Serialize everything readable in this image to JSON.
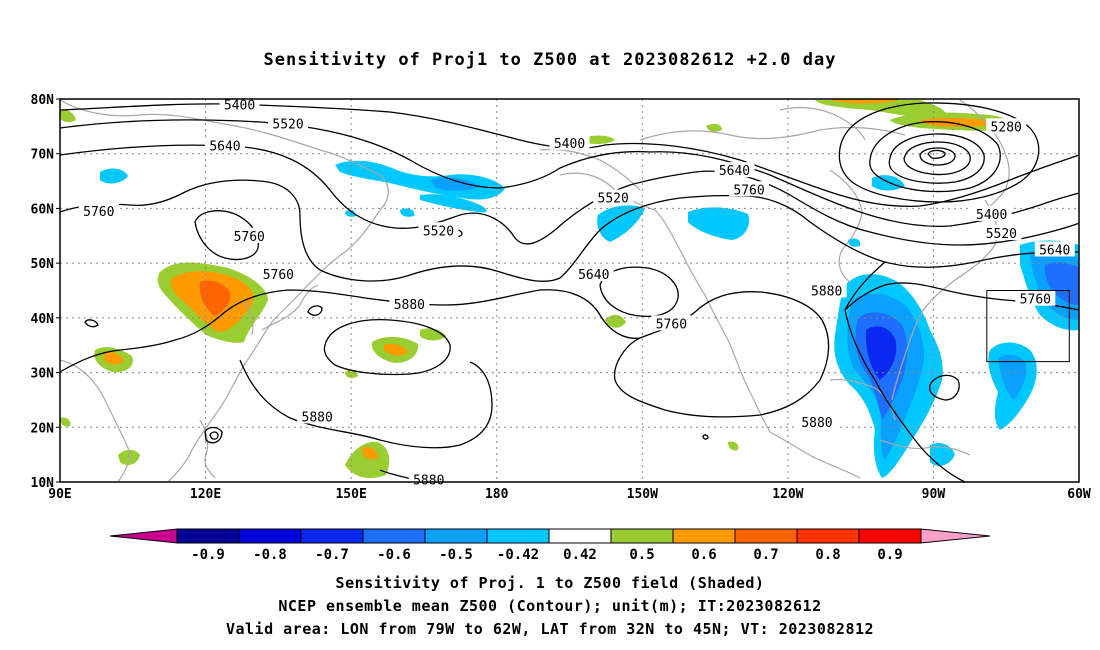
{
  "title": "Sensitivity of Proj1 to Z500 at 2023082612 +2.0 day",
  "map": {
    "lon_range": [
      90,
      300
    ],
    "lat_range": [
      10,
      80
    ],
    "lat_ticks": [
      {
        "value": 80,
        "label": "80N"
      },
      {
        "value": 70,
        "label": "70N"
      },
      {
        "value": 60,
        "label": "60N"
      },
      {
        "value": 50,
        "label": "50N"
      },
      {
        "value": 40,
        "label": "40N"
      },
      {
        "value": 30,
        "label": "30N"
      },
      {
        "value": 20,
        "label": "20N"
      },
      {
        "value": 10,
        "label": "10N"
      }
    ],
    "lon_ticks": [
      {
        "value": 90,
        "label": "90E"
      },
      {
        "value": 120,
        "label": "120E"
      },
      {
        "value": 150,
        "label": "150E"
      },
      {
        "value": 180,
        "label": "180"
      },
      {
        "value": 210,
        "label": "150W"
      },
      {
        "value": 240,
        "label": "120W"
      },
      {
        "value": 270,
        "label": "90W"
      },
      {
        "value": 300,
        "label": "60W"
      }
    ],
    "grid": "dotted",
    "contour_labels": [
      {
        "text": "5400",
        "lon": 127,
        "lat": 79
      },
      {
        "text": "5520",
        "lon": 137,
        "lat": 75.5
      },
      {
        "text": "5640",
        "lon": 124,
        "lat": 71.5
      },
      {
        "text": "5400",
        "lon": 195,
        "lat": 72
      },
      {
        "text": "5280",
        "lon": 285,
        "lat": 75
      },
      {
        "text": "5640",
        "lon": 229,
        "lat": 67
      },
      {
        "text": "5760",
        "lon": 232,
        "lat": 63.5
      },
      {
        "text": "5520",
        "lon": 204,
        "lat": 62
      },
      {
        "text": "5760",
        "lon": 98,
        "lat": 59.5
      },
      {
        "text": "5400",
        "lon": 282,
        "lat": 59
      },
      {
        "text": "5760",
        "lon": 129,
        "lat": 55
      },
      {
        "text": "5520",
        "lon": 168,
        "lat": 56
      },
      {
        "text": "5520",
        "lon": 284,
        "lat": 55.5
      },
      {
        "text": "5640",
        "lon": 295,
        "lat": 52.5
      },
      {
        "text": "5760",
        "lon": 135,
        "lat": 48
      },
      {
        "text": "5640",
        "lon": 200,
        "lat": 48
      },
      {
        "text": "5880",
        "lon": 248,
        "lat": 45
      },
      {
        "text": "5760",
        "lon": 291,
        "lat": 43.5
      },
      {
        "text": "5880",
        "lon": 162,
        "lat": 42.5
      },
      {
        "text": "5760",
        "lon": 216,
        "lat": 39
      },
      {
        "text": "5880",
        "lon": 143,
        "lat": 22
      },
      {
        "text": "5880",
        "lon": 246,
        "lat": 21
      },
      {
        "text": "5880",
        "lon": 166,
        "lat": 10.5
      }
    ],
    "valid_box": {
      "lon_from": 281,
      "lon_to": 298,
      "lat_from": 32,
      "lat_to": 45
    }
  },
  "colorbar": {
    "labels": [
      "-0.9",
      "-0.8",
      "-0.7",
      "-0.6",
      "-0.5",
      "-0.42",
      "0.42",
      "0.5",
      "0.6",
      "0.7",
      "0.8",
      "0.9"
    ],
    "colors": [
      "#000096",
      "#0000dc",
      "#0a28f0",
      "#1e6eff",
      "#0aa0ff",
      "#00c8ff",
      "#ffffff",
      "#9acd32",
      "#ff9a00",
      "#ff6400",
      "#ff3200",
      "#ff0000"
    ],
    "low_color": "#c8008c",
    "high_color": "#f8a0c8"
  },
  "caption": {
    "line1": "Sensitivity of Proj. 1 to Z500 field (Shaded)",
    "line2": "NCEP ensemble mean Z500 (Contour); unit(m); IT:2023082612",
    "line3": "Valid area: LON from 79W to 62W, LAT from 32N to 45N; VT: 2023082812"
  }
}
